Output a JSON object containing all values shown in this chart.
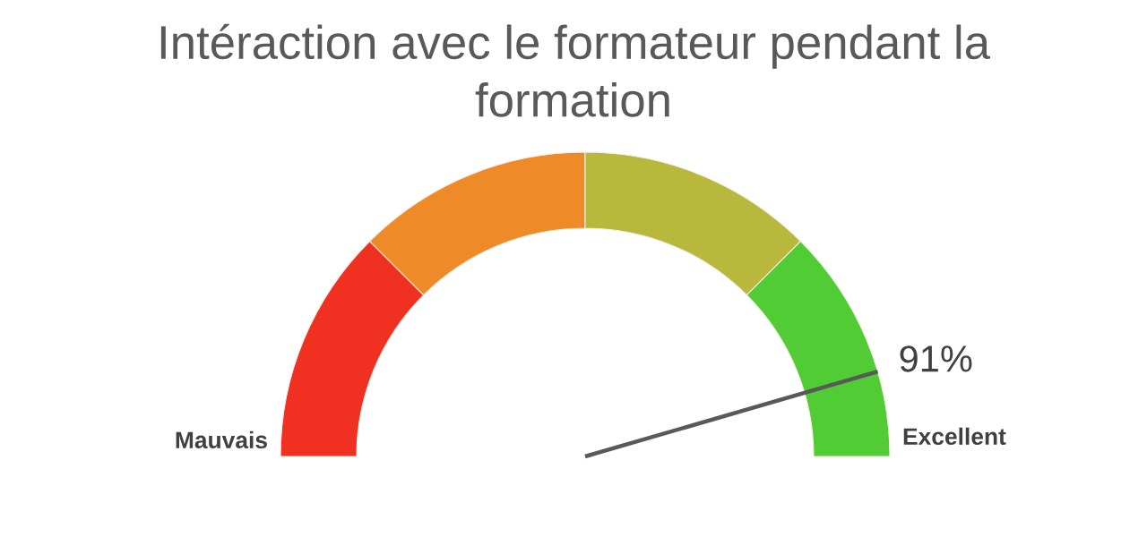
{
  "chart_data": {
    "type": "donut",
    "title": "Intéraction avec le formateur pendant la formation",
    "categories": [
      "Mauvais",
      null,
      null,
      "Excellent"
    ],
    "values": [
      25,
      25,
      25,
      25
    ],
    "colors": [
      "#f03020",
      "#ef8a28",
      "#b8b83c",
      "#52cc34"
    ],
    "needle": "Excellent",
    "annotations": [
      "91%"
    ]
  }
}
